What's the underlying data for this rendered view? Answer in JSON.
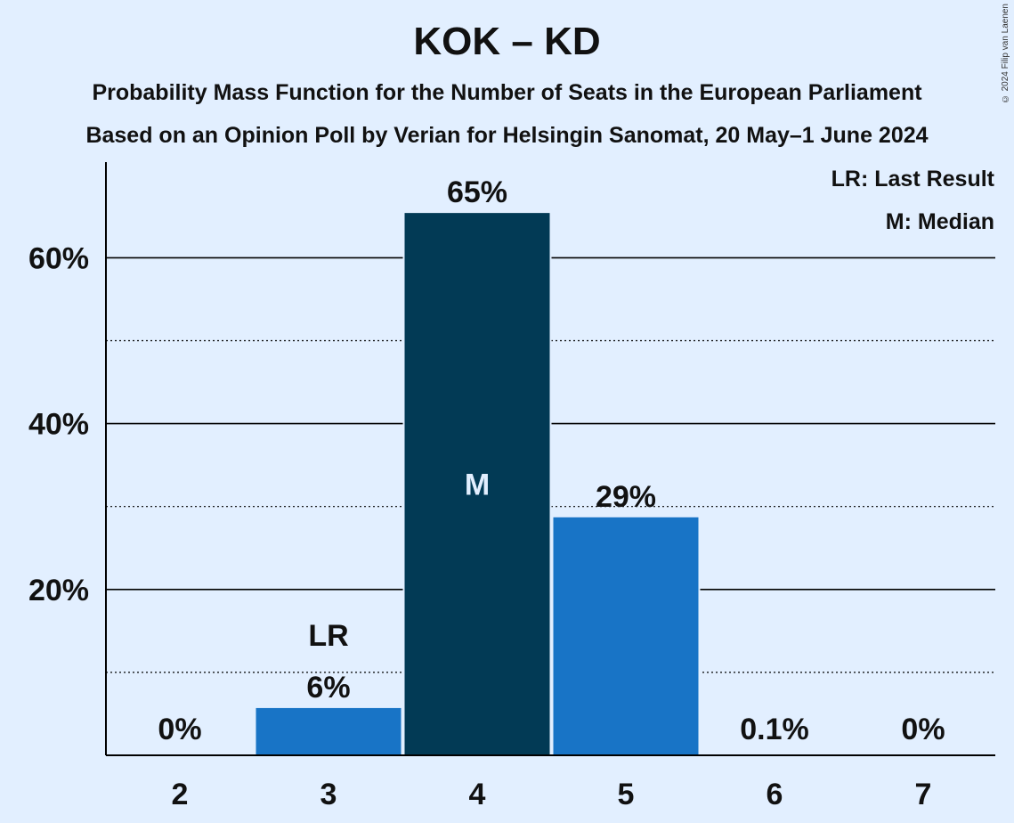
{
  "chart_data": {
    "type": "bar",
    "title": "KOK – KD",
    "subtitle_lines": [
      "Probability Mass Function for the Number of Seats in the European Parliament",
      "Based on an Opinion Poll by Verian for Helsingin Sanomat, 20 May–1 June 2024"
    ],
    "categories": [
      "2",
      "3",
      "4",
      "5",
      "6",
      "7"
    ],
    "values": [
      0,
      5.7,
      65.4,
      28.7,
      0.1,
      0
    ],
    "value_labels": [
      "0%",
      "6%",
      "65%",
      "29%",
      "0.1%",
      "0%"
    ],
    "last_result_category": "3",
    "last_result_marker": "LR",
    "median_category": "4",
    "median_marker": "M",
    "y_ticks": [
      20,
      40,
      60
    ],
    "y_tick_labels": [
      "20%",
      "40%",
      "60%"
    ],
    "y_minor_ticks": [
      10,
      30,
      50
    ],
    "ylim": [
      0,
      71
    ],
    "xlabel": "",
    "ylabel": "",
    "grid": true,
    "legend": {
      "placement": "top-right",
      "entries": [
        "LR: Last Result",
        "M: Median"
      ]
    },
    "colors": {
      "bar": "#1874C6",
      "median_bar": "#023A55",
      "background": "#E2EFFF"
    }
  },
  "copyright": "© 2024 Filip van Laenen"
}
